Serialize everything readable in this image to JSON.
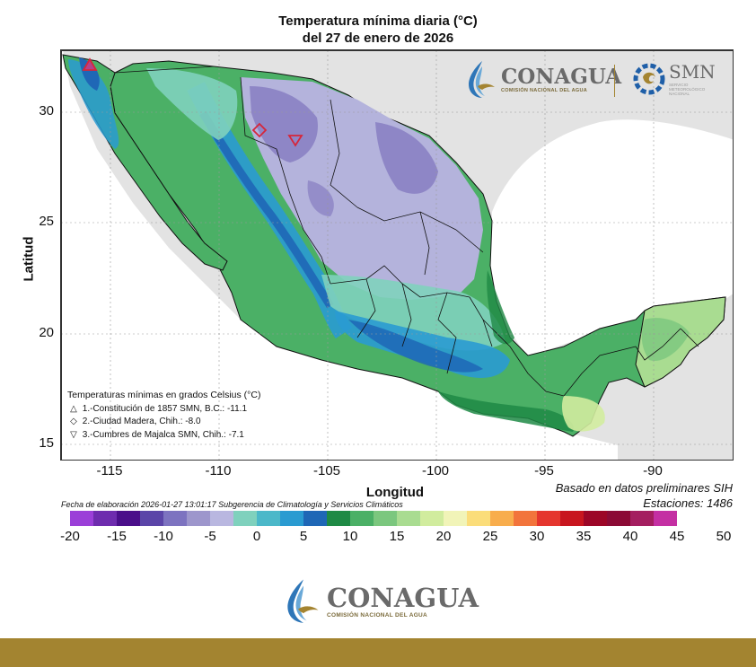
{
  "title": {
    "line1": "Temperatura mínima diaria (°C)",
    "line2": "del 27 de enero de 2026"
  },
  "axes": {
    "xlabel": "Longitud",
    "ylabel": "Latitud",
    "xticks": [
      "-115",
      "-110",
      "-105",
      "-100",
      "-95",
      "-90"
    ],
    "yticks": [
      "30",
      "25",
      "20",
      "15"
    ]
  },
  "legend": {
    "heading": "Temperaturas mínimas en grados Celsius (°C)",
    "items": [
      {
        "symbol": "△",
        "label": "1.-Constitución de 1857 SMN, B.C.: -11.1"
      },
      {
        "symbol": "◇",
        "label": "2.-Ciudad Madera, Chih.: -8.0"
      },
      {
        "symbol": "▽",
        "label": "3.-Cumbres de Majalca SMN, Chih.: -7.1"
      }
    ]
  },
  "source": {
    "line1": "Basado en datos preliminares SIH",
    "line2": "Estaciones:  1486"
  },
  "footnote": "Fecha de elaboración 2026-01-27 13:01:17 Subgerencia de Climatología y Servicios Climáticos",
  "colorbar": {
    "colors": [
      "#9b3fd8",
      "#6e2cae",
      "#4a0f8a",
      "#5b45a8",
      "#7d73c0",
      "#9d96cc",
      "#b9b7e0",
      "#7fd1bd",
      "#4bb8c9",
      "#2a9bd1",
      "#1f67b6",
      "#1f8a45",
      "#4bb066",
      "#7bc77e",
      "#a9dc91",
      "#d1ec9e",
      "#f1f4b8",
      "#fbdd7a",
      "#f8ad4d",
      "#f2743c",
      "#e5362e",
      "#c8161f",
      "#9c0627",
      "#8b0a35",
      "#a41e60",
      "#c42fa3"
    ],
    "labels": [
      "-20",
      "-15",
      "-10",
      "-5",
      "0",
      "5",
      "10",
      "15",
      "20",
      "25",
      "30",
      "35",
      "40",
      "45",
      "50"
    ]
  },
  "map": {
    "stations": [
      {
        "id": "1",
        "symbol": "triangle-up"
      },
      {
        "id": "2",
        "symbol": "diamond"
      },
      {
        "id": "3",
        "symbol": "triangle-down"
      }
    ],
    "colors": {
      "land_outside": "#e3e3e3",
      "ocean": "#ffffff",
      "cold_lavender": "#b4b3dc",
      "purple": "#8e86c6",
      "teal": "#7fd1bd",
      "blue": "#2a9bd1",
      "darkblue": "#1f67b6",
      "darkgreen": "#1f8a45",
      "green": "#4bb066",
      "lightgreen": "#a9dc91",
      "yellowgreen": "#d1ec9e",
      "marker": "#d6263a"
    }
  },
  "logos": {
    "top": {
      "name": "CONAGUA",
      "sub": "COMISIÓN NACIONAL DEL AGUA"
    },
    "smn": {
      "name": "SMN",
      "sub1": "SERVICIO",
      "sub2": "METEOROLÓGICO",
      "sub3": "NACIONAL"
    },
    "bottom": {
      "name": "CONAGUA",
      "sub": "COMISIÓN NACIONAL DEL AGUA"
    }
  }
}
